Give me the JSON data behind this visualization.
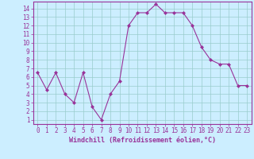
{
  "x": [
    0,
    1,
    2,
    3,
    4,
    5,
    6,
    7,
    8,
    9,
    10,
    11,
    12,
    13,
    14,
    15,
    16,
    17,
    18,
    19,
    20,
    21,
    22,
    23
  ],
  "y": [
    6.5,
    4.5,
    6.5,
    4.0,
    3.0,
    6.5,
    2.5,
    1.0,
    4.0,
    5.5,
    12.0,
    13.5,
    13.5,
    14.5,
    13.5,
    13.5,
    13.5,
    12.0,
    9.5,
    8.0,
    7.5,
    7.5,
    5.0,
    5.0
  ],
  "line_color": "#993399",
  "marker": "D",
  "marker_size": 2,
  "bg_color": "#cceeff",
  "grid_color": "#99cccc",
  "xlabel": "Windchill (Refroidissement éolien,°C)",
  "xlim": [
    -0.5,
    23.5
  ],
  "ylim": [
    0.5,
    14.8
  ],
  "yticks": [
    1,
    2,
    3,
    4,
    5,
    6,
    7,
    8,
    9,
    10,
    11,
    12,
    13,
    14
  ],
  "xticks": [
    0,
    1,
    2,
    3,
    4,
    5,
    6,
    7,
    8,
    9,
    10,
    11,
    12,
    13,
    14,
    15,
    16,
    17,
    18,
    19,
    20,
    21,
    22,
    23
  ],
  "tick_color": "#993399",
  "spine_color": "#993399",
  "xlabel_color": "#993399"
}
